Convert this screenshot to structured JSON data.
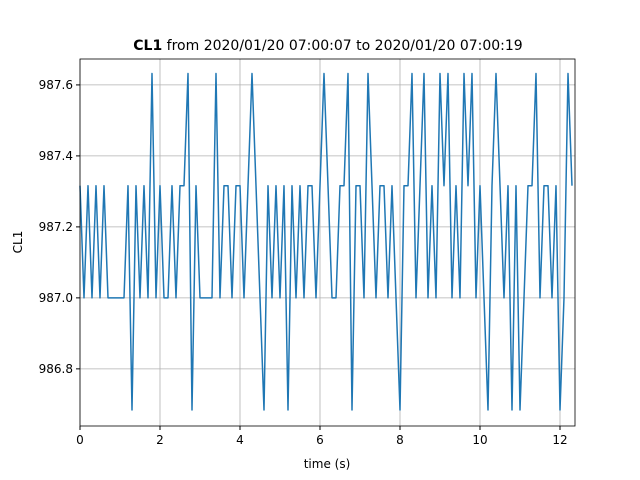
{
  "chart_data": {
    "type": "line",
    "title_bold": "CL1",
    "title_rest": " from 2020/01/20 07:00:07 to 2020/01/20 07:00:19",
    "xlabel": "time (s)",
    "ylabel": "CL1",
    "grid": true,
    "xlim": [
      0,
      12.375
    ],
    "ylim": [
      986.639,
      987.673
    ],
    "xticks": [
      0,
      2,
      4,
      6,
      8,
      10,
      12
    ],
    "yticks": [
      986.8,
      {
        "value": 987,
        "label": "987.0"
      },
      987.2,
      987.4,
      987.6
    ],
    "series": [
      {
        "name": "CL1",
        "color": "#1f77b4",
        "x": [
          0,
          0.1,
          0.2,
          0.3,
          0.4,
          0.5,
          0.6,
          0.7,
          0.8,
          0.9,
          1,
          1.1,
          1.2,
          1.3,
          1.4,
          1.5,
          1.6,
          1.7,
          1.8,
          1.9,
          2,
          2.1,
          2.2,
          2.3,
          2.4,
          2.5,
          2.6,
          2.7,
          2.8,
          2.9,
          3,
          3.1,
          3.2,
          3.3,
          3.4,
          3.5,
          3.6,
          3.7,
          3.8,
          3.9,
          4,
          4.1,
          4.2,
          4.3,
          4.4,
          4.5,
          4.6,
          4.7,
          4.8,
          4.9,
          5,
          5.1,
          5.2,
          5.3,
          5.4,
          5.5,
          5.6,
          5.7,
          5.8,
          5.9,
          6,
          6.1,
          6.2,
          6.3,
          6.4,
          6.5,
          6.6,
          6.7,
          6.8,
          6.9,
          7,
          7.1,
          7.2,
          7.3,
          7.4,
          7.5,
          7.6,
          7.7,
          7.8,
          7.9,
          8,
          8.1,
          8.2,
          8.3,
          8.4,
          8.5,
          8.6,
          8.7,
          8.8,
          8.9,
          9,
          9.1,
          9.2,
          9.3,
          9.4,
          9.5,
          9.6,
          9.7,
          9.8,
          9.9,
          10,
          10.1,
          10.2,
          10.3,
          10.4,
          10.5,
          10.6,
          10.7,
          10.8,
          10.9,
          11,
          11.1,
          11.2,
          11.3,
          11.4,
          11.5,
          11.6,
          11.7,
          11.8,
          11.9,
          12,
          12.1,
          12.2,
          12.3
        ],
        "values": [
          987.316,
          987,
          987.316,
          987,
          987.316,
          987,
          987.316,
          987,
          987,
          987,
          987,
          987,
          987.316,
          986.684,
          987.316,
          987,
          987.316,
          987,
          987.632,
          987,
          987.316,
          987,
          987,
          987.316,
          987,
          987.316,
          987.316,
          987.632,
          986.684,
          987.316,
          987,
          987,
          987,
          987,
          987.632,
          987,
          987.316,
          987.316,
          987,
          987.316,
          987.316,
          987,
          987.316,
          987.632,
          987.316,
          987,
          986.684,
          987.316,
          987,
          987.316,
          987,
          987.316,
          986.684,
          987.316,
          987,
          987.316,
          987,
          987.316,
          987.316,
          987,
          987.316,
          987.632,
          987.316,
          987,
          987,
          987.316,
          987.316,
          987.632,
          986.684,
          987.316,
          987.316,
          987,
          987.632,
          987.316,
          987,
          987.316,
          987.316,
          987,
          987.316,
          987,
          986.684,
          987.316,
          987.316,
          987.632,
          987,
          987.316,
          987.632,
          987,
          987.316,
          987,
          987.632,
          987.316,
          987.632,
          987,
          987.316,
          987,
          987.632,
          987.316,
          987.632,
          987,
          987.316,
          987,
          986.684,
          987.316,
          987.632,
          987.316,
          987,
          987.316,
          986.684,
          987.316,
          986.684,
          987,
          987.316,
          987.316,
          987.632,
          987,
          987.316,
          987.316,
          987,
          987.316,
          986.684,
          987,
          987.632,
          987.316
        ]
      }
    ]
  }
}
